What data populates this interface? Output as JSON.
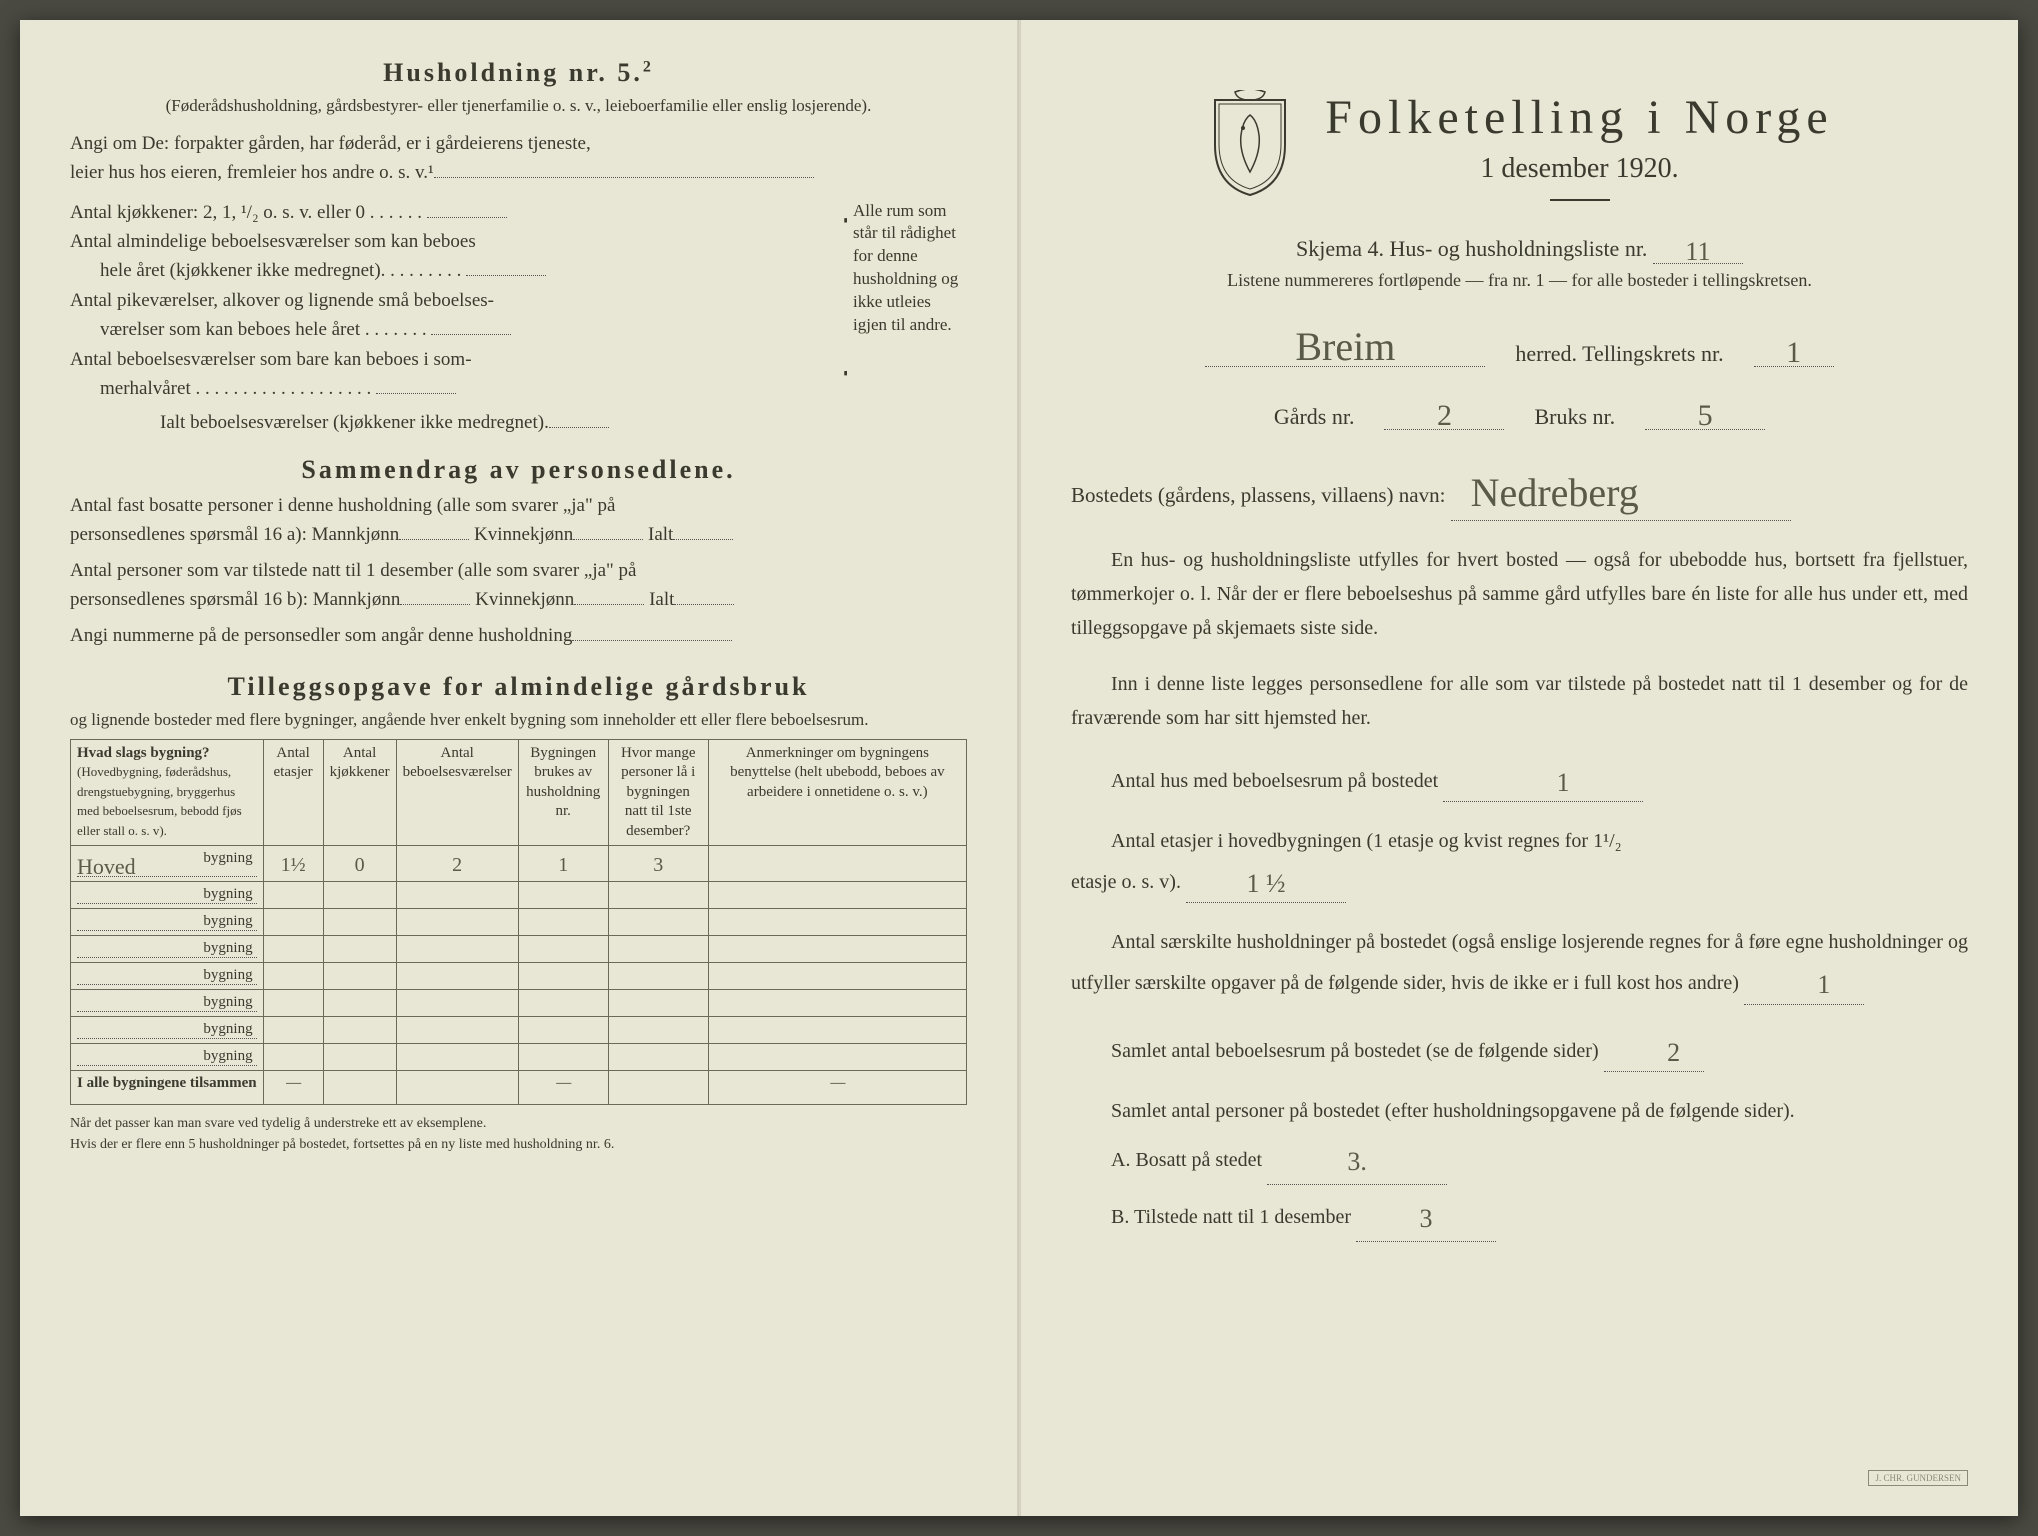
{
  "colors": {
    "paper": "#e8e6d4",
    "ink": "#3a3a2e",
    "handwriting": "#5a5a48",
    "border": "#6a6a5a",
    "background": "#4a4a42"
  },
  "left": {
    "householdHeading": "Husholdning nr. 5.",
    "householdHeadingSup": "2",
    "householdSub": "(Føderådshusholdning, gårdsbestyrer- eller tjenerfamilie o. s. v., leieboerfamilie eller enslig losjerende).",
    "angiLine1": "Angi om De:  forpakter gården, har føderåd, er i gårdeierens tjeneste,",
    "angiLine2": "leier hus hos eieren, fremleier hos andre o. s. v.¹",
    "kjokkenLine": "Antal kjøkkener: 2, 1, ¹/₂ o. s. v. eller 0 .  .  .  .  .  .",
    "room1a": "Antal almindelige beboelsesværelser som kan beboes",
    "room1b": "hele året (kjøkkener ikke medregnet). .  .  .  .  .  .  .  .",
    "room2a": "Antal pikeværelser, alkover og lignende små beboelses-",
    "room2b": "værelser som kan beboes hele året  .  .  .  .  .  .  .",
    "room3a": "Antal beboelsesværelser som bare kan beboes i som-",
    "room3b": "merhalvåret .  .  .  .  .  .  .  .  .  .  .  .  .  .  .  .  .  .  .",
    "roomTotal": "Ialt beboelsesværelser  (kjøkkener ikke medregnet).",
    "braceText": "Alle rum som står til rådighet for denne husholdning og ikke utleies igjen til andre.",
    "summaryHeading": "Sammendrag av personsedlene.",
    "sum1a": "Antal fast bosatte personer i denne husholdning (alle som svarer „ja\" på",
    "sum1b": "personsedlenes spørsmål 16 a): Mannkjønn",
    "sum1c": "Kvinnekjønn",
    "sum1d": "Ialt",
    "sum2a": "Antal personer som var tilstede natt til 1 desember (alle som svarer „ja\" på",
    "sum2b": "personsedlenes spørsmål 16 b): Mannkjønn",
    "sum3": "Angi nummerne på de personsedler som angår denne husholdning",
    "tilleggHeading": "Tilleggsopgave for almindelige gårdsbruk",
    "tilleggSub": "og lignende bosteder med flere bygninger, angående hver enkelt bygning som inneholder ett eller flere beboelsesrum.",
    "tableHeaders": {
      "c1a": "Hvad slags bygning?",
      "c1b": "(Hovedbygning, føderådshus, drengstuebygning, bryggerhus med beboelsesrum, bebodd fjøs eller stall o. s. v).",
      "c2": "Antal etasjer",
      "c3": "Antal kjøkkener",
      "c4": "Antal beboelsesværelser",
      "c5": "Bygningen brukes av husholdning nr.",
      "c6": "Hvor mange personer lå i bygningen natt til 1ste desember?",
      "c7": "Anmerkninger om bygningens benyttelse (helt ubebodd, beboes av arbeidere i onnetidene o. s. v.)"
    },
    "rows": [
      {
        "name": "Hoved",
        "etasjer": "1½",
        "kjokken": "0",
        "vaer": "2",
        "hush": "1",
        "pers": "3",
        "anm": ""
      },
      {
        "name": "",
        "etasjer": "",
        "kjokken": "",
        "vaer": "",
        "hush": "",
        "pers": "",
        "anm": ""
      },
      {
        "name": "",
        "etasjer": "",
        "kjokken": "",
        "vaer": "",
        "hush": "",
        "pers": "",
        "anm": ""
      },
      {
        "name": "",
        "etasjer": "",
        "kjokken": "",
        "vaer": "",
        "hush": "",
        "pers": "",
        "anm": ""
      },
      {
        "name": "",
        "etasjer": "",
        "kjokken": "",
        "vaer": "",
        "hush": "",
        "pers": "",
        "anm": ""
      },
      {
        "name": "",
        "etasjer": "",
        "kjokken": "",
        "vaer": "",
        "hush": "",
        "pers": "",
        "anm": ""
      },
      {
        "name": "",
        "etasjer": "",
        "kjokken": "",
        "vaer": "",
        "hush": "",
        "pers": "",
        "anm": ""
      },
      {
        "name": "",
        "etasjer": "",
        "kjokken": "",
        "vaer": "",
        "hush": "",
        "pers": "",
        "anm": ""
      }
    ],
    "rowSuffix": "bygning",
    "totalRowLabel": "I alle bygningene tilsammen",
    "footnote1": "Når det passer kan man svare ved tydelig å understreke ett av eksemplene.",
    "footnote2": "Hvis der er flere enn 5 husholdninger på bostedet, fortsettes på en ny liste med husholdning nr. 6."
  },
  "right": {
    "title1": "Folketelling  i  Norge",
    "title2": "1 desember 1920.",
    "skjemaLine": "Skjema 4.   Hus- og husholdningsliste nr.",
    "skjemaValue": "11",
    "subLine": "Listene nummereres fortløpende — fra nr. 1 — for alle bosteder i tellingskretsen.",
    "herredValue": "Breim",
    "herredLabel": "herred.   Tellingskrets nr.",
    "kretsValue": "1",
    "gardsLabel": "Gårds nr.",
    "gardsValue": "2",
    "bruksLabel": "Bruks nr.",
    "bruksValue": "5",
    "bostedLabel": "Bostedets (gårdens, plassens, villaens) navn:",
    "bostedValue": "Nedreberg",
    "para1": "En hus- og husholdningsliste utfylles for hvert bosted — også for ubebodde hus, bortsett fra fjellstuer, tømmerkojer o. l.  Når der er flere beboelseshus på samme gård utfylles bare én liste for alle hus under ett, med tilleggsopgave på skjemaets siste side.",
    "para2": "Inn i denne liste legges personsedlene for alle som var tilstede på bostedet natt til 1 desember og for de fraværende som har sitt hjemsted her.",
    "q1": "Antal hus med beboelsesrum på bostedet",
    "q1v": "1",
    "q2a": "Antal etasjer i hovedbygningen (1 etasje og kvist regnes for 1¹/₂",
    "q2b": "etasje o. s. v).",
    "q2v": "1 ½",
    "q3": "Antal særskilte husholdninger på bostedet (også enslige losjerende regnes for å føre egne husholdninger og utfyller særskilte opgaver på de følgende sider, hvis de ikke er i full kost hos andre)",
    "q3v": "1",
    "q4": "Samlet antal beboelsesrum på bostedet (se de følgende sider)",
    "q4v": "2",
    "q5": "Samlet antal personer på bostedet (efter husholdningsopgavene på de følgende sider).",
    "qA": "A.  Bosatt på stedet",
    "qAv": "3.",
    "qB": "B.  Tilstede natt til 1 desember",
    "qBv": "3"
  }
}
